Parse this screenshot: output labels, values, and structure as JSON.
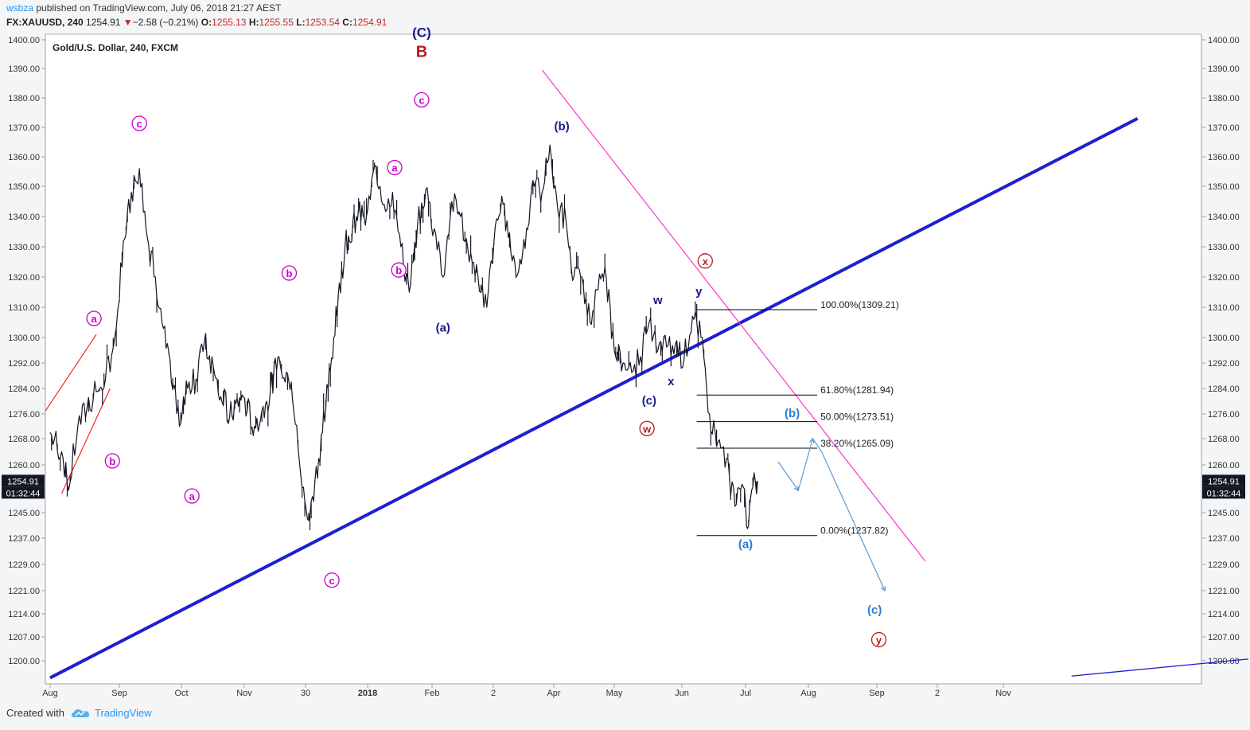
{
  "header": {
    "author": "wsbza",
    "published": "published on TradingView.com, July 06, 2018 21:27 AEST"
  },
  "ohlc": {
    "symbol": "FX:XAUUSD, 240",
    "last": "1254.91",
    "change": "−2.58 (−0.21%)",
    "o_label": "O:",
    "o": "1255.13",
    "h_label": "H:",
    "h": "1255.55",
    "l_label": "L:",
    "l": "1253.54",
    "c_label": "C:",
    "c": "1254.91"
  },
  "chart_title": "Gold/U.S. Dollar, 240, FXCM",
  "price_badge": {
    "price": "1254.91",
    "countdown": "01:32:44",
    "color": "#131722"
  },
  "footer": {
    "created_with": "Created with",
    "brand": "TradingView"
  },
  "colors": {
    "price": "#131722",
    "trendline": "#1e1ed2",
    "resistance": "#ff33cc",
    "fib": "#000000",
    "label_magenta": "#cc00cc",
    "label_navy": "#1a1a8c",
    "label_red": "#b71c1c",
    "label_blue": "#2a7bd4",
    "projection": "#5b9bd5"
  },
  "chart_data": {
    "type": "line",
    "title": "Gold/U.S. Dollar, 240, FXCM",
    "y_ticks": [
      "1200.00",
      "1207.00",
      "1214.00",
      "1221.00",
      "1229.00",
      "1237.00",
      "1245.00",
      "1254.91",
      "1260.00",
      "1268.00",
      "1276.00",
      "1284.00",
      "1292.00",
      "1300.00",
      "1310.00",
      "1320.00",
      "1330.00",
      "1340.00",
      "1350.00",
      "1360.00",
      "1370.00",
      "1380.00",
      "1390.00",
      "1400.00"
    ],
    "x_ticks": [
      "Aug",
      "Sep",
      "Oct",
      "Nov",
      "30",
      "2018",
      "Feb",
      "2",
      "Apr",
      "May",
      "Jun",
      "Jul",
      "Aug",
      "Sep",
      "2",
      "Nov"
    ],
    "x_tick_times": [
      0,
      30,
      61,
      91,
      121,
      154,
      185,
      213,
      244,
      274,
      305,
      335,
      366,
      397,
      427,
      458
    ],
    "ylim": [
      1194,
      1402
    ],
    "xlim": [
      0,
      573
    ],
    "series": [
      {
        "x": [
          0,
          5,
          8,
          12,
          16,
          20,
          24,
          28,
          32,
          36,
          40,
          44,
          48,
          52,
          56,
          60,
          64,
          68,
          72,
          78,
          84,
          90,
          96,
          102,
          108,
          114,
          118,
          122,
          126,
          130,
          136,
          142,
          148,
          154,
          158,
          162,
          166,
          170,
          174,
          178,
          182,
          186,
          190,
          194,
          198,
          202,
          206,
          210,
          214,
          218,
          222,
          226,
          230,
          234,
          238,
          242,
          246,
          250,
          254,
          258,
          262,
          266,
          270,
          274,
          278,
          282,
          286,
          290,
          294,
          298,
          302,
          306,
          310,
          314,
          318,
          322,
          326,
          330,
          334,
          336,
          338,
          341
        ],
        "y": [
          1270,
          1264,
          1252,
          1272,
          1278,
          1283,
          1287,
          1300,
          1332,
          1348,
          1356,
          1333,
          1320,
          1303,
          1286,
          1272,
          1284,
          1287,
          1299,
          1287,
          1275,
          1282,
          1272,
          1280,
          1294,
          1286,
          1261,
          1243,
          1255,
          1270,
          1300,
          1330,
          1340,
          1342,
          1357,
          1344,
          1348,
          1330,
          1315,
          1337,
          1349,
          1336,
          1320,
          1345,
          1340,
          1325,
          1320,
          1310,
          1337,
          1344,
          1328,
          1322,
          1336,
          1350,
          1348,
          1364,
          1342,
          1339,
          1320,
          1320,
          1305,
          1316,
          1320,
          1296,
          1292,
          1289,
          1294,
          1305,
          1296,
          1297,
          1298,
          1293,
          1307,
          1300,
          1276,
          1267,
          1262,
          1247,
          1253,
          1240,
          1252,
          1255
        ]
      }
    ],
    "fib_levels": [
      {
        "label": "100.00%(1309.21)",
        "value": 1309.21
      },
      {
        "label": "61.80%(1281.94)",
        "value": 1281.94
      },
      {
        "label": "50.00%(1273.51)",
        "value": 1273.51
      },
      {
        "label": "38.20%(1265.09)",
        "value": 1265.09
      },
      {
        "label": "0.00%(1237.82)",
        "value": 1237.82
      }
    ],
    "trendlines": [
      {
        "name": "support",
        "t1": 0,
        "p1": 1195,
        "t2": 521,
        "p2": 1373
      },
      {
        "name": "resistance",
        "t1": 238,
        "p1": 1389.5,
        "t2": 421,
        "p2": 1230
      },
      {
        "name": "lower-right",
        "t1": 490,
        "p1": 1195.5,
        "t2": 573,
        "p2": 1200.5
      },
      {
        "name": "diagonal-upper",
        "t1": -2,
        "p1": 1277,
        "t2": 20,
        "p2": 1301
      },
      {
        "name": "diagonal-lower",
        "t1": 5,
        "p1": 1251,
        "t2": 26,
        "p2": 1284
      }
    ],
    "projection_path": [
      [
        351,
        1261
      ],
      [
        361,
        1252
      ],
      [
        368,
        1268
      ],
      [
        372,
        1264
      ],
      [
        401,
        1221
      ]
    ],
    "wave_labels": [
      {
        "text": "(C)",
        "t": 180,
        "p": 1401,
        "color": "label_navy",
        "circled": false,
        "size": 17
      },
      {
        "text": "B",
        "t": 180,
        "p": 1394,
        "color": "label_red",
        "circled": false,
        "size": 20
      },
      {
        "text": "c",
        "t": 180,
        "p": 1378,
        "color": "label_magenta",
        "circled": true
      },
      {
        "text": "c",
        "t": 40,
        "p": 1370,
        "color": "label_magenta",
        "circled": true
      },
      {
        "text": "a",
        "t": 167,
        "p": 1355,
        "color": "label_magenta",
        "circled": true
      },
      {
        "text": "b",
        "t": 113,
        "p": 1320,
        "color": "label_magenta",
        "circled": true
      },
      {
        "text": "b",
        "t": 169,
        "p": 1321,
        "color": "label_magenta",
        "circled": true
      },
      {
        "text": "a",
        "t": 19,
        "p": 1305,
        "color": "label_magenta",
        "circled": true
      },
      {
        "text": "b",
        "t": 27,
        "p": 1260,
        "color": "label_magenta",
        "circled": true
      },
      {
        "text": "a",
        "t": 66,
        "p": 1249,
        "color": "label_magenta",
        "circled": true
      },
      {
        "text": "c",
        "t": 135,
        "p": 1223,
        "color": "label_magenta",
        "circled": true
      },
      {
        "text": "(b)",
        "t": 248,
        "p": 1369,
        "color": "label_navy",
        "circled": false
      },
      {
        "text": "(a)",
        "t": 190,
        "p": 1302,
        "color": "label_navy",
        "circled": false
      },
      {
        "text": "(c)",
        "t": 290,
        "p": 1279,
        "color": "label_navy",
        "circled": false
      },
      {
        "text": "w",
        "t": 294,
        "p": 1311,
        "color": "label_navy",
        "circled": false
      },
      {
        "text": "x",
        "t": 300,
        "p": 1285,
        "color": "label_navy",
        "circled": false
      },
      {
        "text": "y",
        "t": 313,
        "p": 1314,
        "color": "label_navy",
        "circled": false
      },
      {
        "text": "x",
        "t": 316,
        "p": 1324,
        "color": "label_red",
        "circled": true
      },
      {
        "text": "w",
        "t": 289,
        "p": 1270,
        "color": "label_red",
        "circled": true
      },
      {
        "text": "y",
        "t": 398,
        "p": 1205,
        "color": "label_red",
        "circled": true
      },
      {
        "text": "(b)",
        "t": 358,
        "p": 1275,
        "color": "label_blue",
        "circled": false
      },
      {
        "text": "(a)",
        "t": 335,
        "p": 1234,
        "color": "label_blue",
        "circled": false
      },
      {
        "text": "(c)",
        "t": 396,
        "p": 1214,
        "color": "label_blue",
        "circled": false
      }
    ]
  }
}
